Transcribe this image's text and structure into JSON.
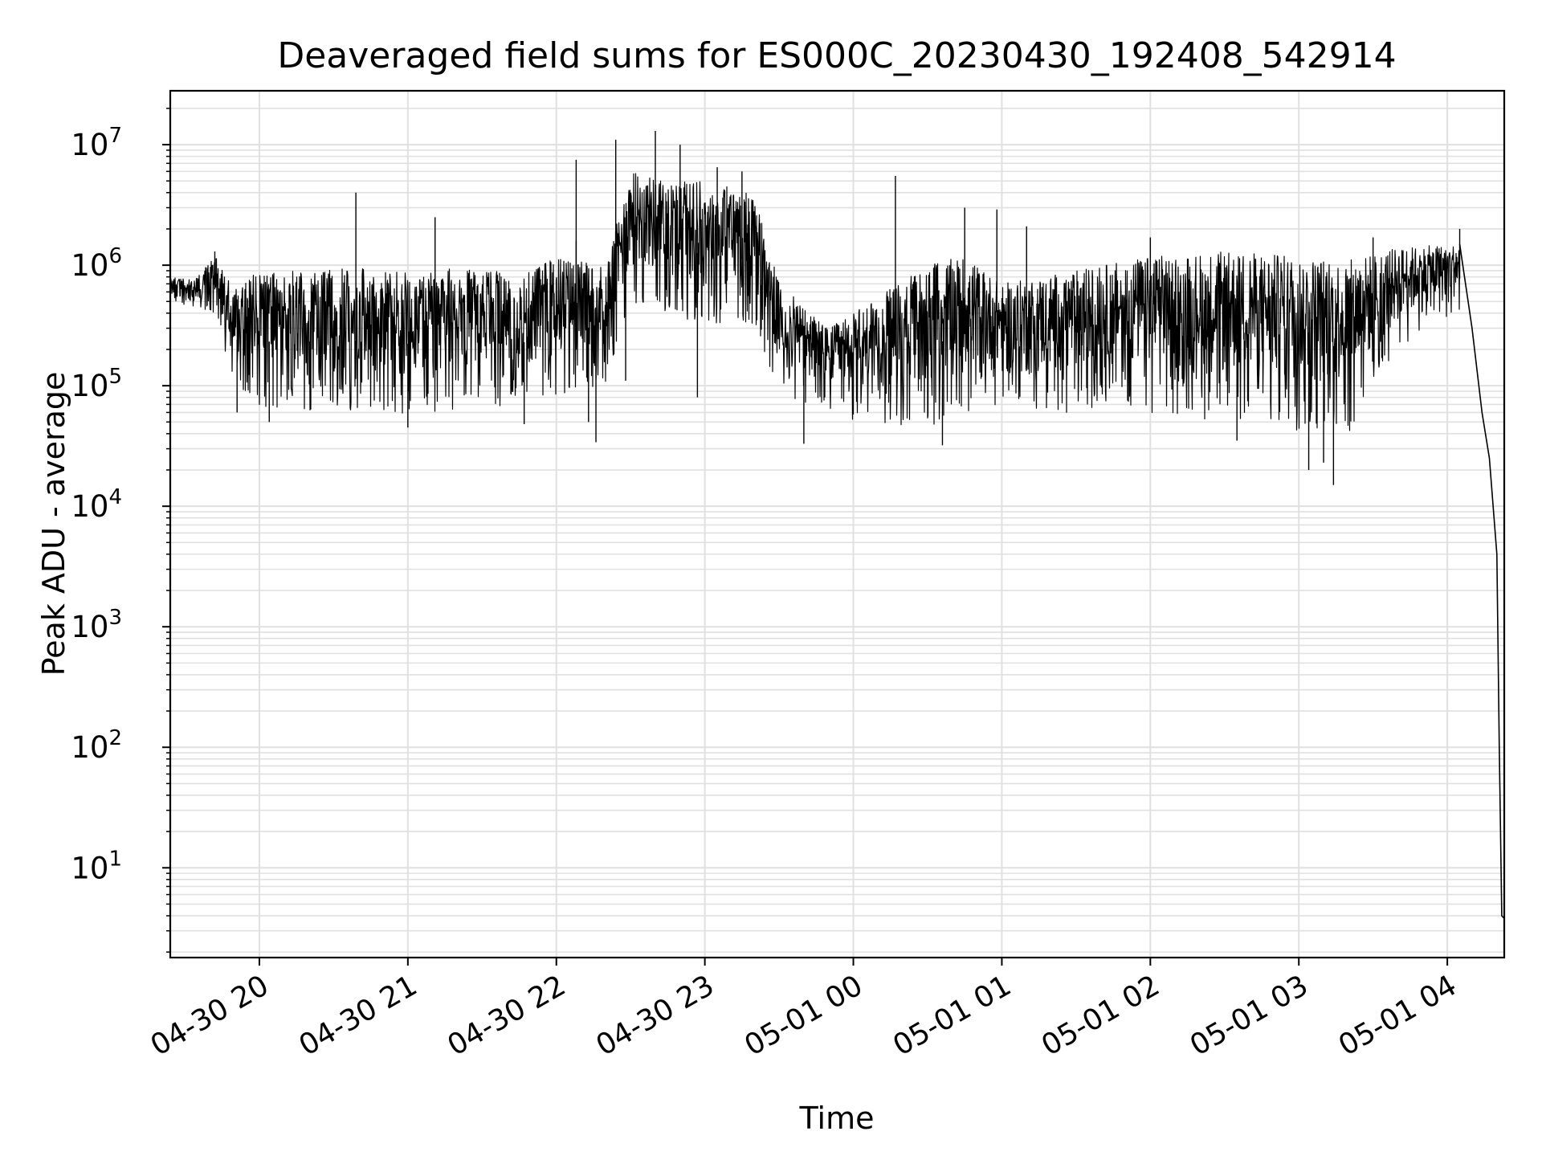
{
  "chart_data": {
    "type": "line",
    "title": "Deaveraged field sums for ES000C_20230430_192408_542914",
    "xlabel": "Time",
    "ylabel": "Peak ADU - average",
    "yscale": "log",
    "ylim": [
      1.8,
      28000000
    ],
    "xlim": [
      "2023-04-30 19:24",
      "2023-05-01 04:23"
    ],
    "x_ticks": [
      {
        "t": "2023-04-30 20:00",
        "label": "04-30 20"
      },
      {
        "t": "2023-04-30 21:00",
        "label": "04-30 21"
      },
      {
        "t": "2023-04-30 22:00",
        "label": "04-30 22"
      },
      {
        "t": "2023-04-30 23:00",
        "label": "04-30 23"
      },
      {
        "t": "2023-05-01 00:00",
        "label": "05-01 00"
      },
      {
        "t": "2023-05-01 01:00",
        "label": "05-01 01"
      },
      {
        "t": "2023-05-01 02:00",
        "label": "05-01 02"
      },
      {
        "t": "2023-05-01 03:00",
        "label": "05-01 03"
      },
      {
        "t": "2023-05-01 04:00",
        "label": "05-01 04"
      }
    ],
    "y_ticks": [
      {
        "value": 10,
        "base": "10",
        "exp": "1"
      },
      {
        "value": 100,
        "base": "10",
        "exp": "2"
      },
      {
        "value": 1000,
        "base": "10",
        "exp": "3"
      },
      {
        "value": 10000,
        "base": "10",
        "exp": "4"
      },
      {
        "value": 100000,
        "base": "10",
        "exp": "5"
      },
      {
        "value": 1000000,
        "base": "10",
        "exp": "6"
      },
      {
        "value": 10000000,
        "base": "10",
        "exp": "7"
      }
    ],
    "grid": true,
    "line_color": "#000000",
    "grid_color": "#e0e0e0",
    "series": [
      {
        "envelope": [
          {
            "t": "2023-04-30 19:24",
            "lo": 500000,
            "hi": 800000
          },
          {
            "t": "2023-04-30 19:34",
            "lo": 450000,
            "hi": 750000
          },
          {
            "t": "2023-04-30 19:42",
            "lo": 400000,
            "hi": 1300000
          },
          {
            "t": "2023-04-30 19:50",
            "lo": 90000,
            "hi": 650000
          },
          {
            "t": "2023-04-30 20:00",
            "lo": 60000,
            "hi": 900000
          },
          {
            "t": "2023-04-30 20:20",
            "lo": 60000,
            "hi": 900000
          },
          {
            "t": "2023-04-30 20:40",
            "lo": 60000,
            "hi": 950000
          },
          {
            "t": "2023-04-30 21:00",
            "lo": 55000,
            "hi": 900000
          },
          {
            "t": "2023-04-30 21:30",
            "lo": 70000,
            "hi": 1000000
          },
          {
            "t": "2023-04-30 21:45",
            "lo": 60000,
            "hi": 800000
          },
          {
            "t": "2023-04-30 22:00",
            "lo": 80000,
            "hi": 1200000
          },
          {
            "t": "2023-04-30 22:20",
            "lo": 90000,
            "hi": 1000000
          },
          {
            "t": "2023-04-30 22:30",
            "lo": 500000,
            "hi": 6000000
          },
          {
            "t": "2023-04-30 22:45",
            "lo": 400000,
            "hi": 5000000
          },
          {
            "t": "2023-04-30 23:00",
            "lo": 300000,
            "hi": 5000000
          },
          {
            "t": "2023-04-30 23:20",
            "lo": 300000,
            "hi": 4000000
          },
          {
            "t": "2023-04-30 23:30",
            "lo": 80000,
            "hi": 700000
          },
          {
            "t": "2023-04-30 23:50",
            "lo": 60000,
            "hi": 300000
          },
          {
            "t": "2023-05-01 00:00",
            "lo": 50000,
            "hi": 400000
          },
          {
            "t": "2023-05-01 00:30",
            "lo": 45000,
            "hi": 1000000
          },
          {
            "t": "2023-05-01 00:45",
            "lo": 60000,
            "hi": 1200000
          },
          {
            "t": "2023-05-01 01:00",
            "lo": 60000,
            "hi": 700000
          },
          {
            "t": "2023-05-01 02:00",
            "lo": 60000,
            "hi": 1200000
          },
          {
            "t": "2023-05-01 02:30",
            "lo": 50000,
            "hi": 1300000
          },
          {
            "t": "2023-05-01 03:00",
            "lo": 40000,
            "hi": 1200000
          },
          {
            "t": "2023-05-01 03:20",
            "lo": 40000,
            "hi": 1100000
          },
          {
            "t": "2023-05-01 03:40",
            "lo": 200000,
            "hi": 1400000
          },
          {
            "t": "2023-05-01 04:05",
            "lo": 400000,
            "hi": 1500000
          }
        ],
        "spikes": [
          {
            "t": "2023-04-30 19:42",
            "value": 1300000
          },
          {
            "t": "2023-04-30 19:51",
            "value": 60000
          },
          {
            "t": "2023-04-30 20:04",
            "value": 50000
          },
          {
            "t": "2023-04-30 20:39",
            "value": 4000000
          },
          {
            "t": "2023-04-30 21:11",
            "value": 2500000
          },
          {
            "t": "2023-04-30 21:00",
            "value": 45000
          },
          {
            "t": "2023-04-30 21:47",
            "value": 48000
          },
          {
            "t": "2023-04-30 22:08",
            "value": 1000000
          },
          {
            "t": "2023-04-30 22:13",
            "value": 50000
          },
          {
            "t": "2023-04-30 22:08",
            "value": 1600000
          },
          {
            "t": "2023-04-30 22:08",
            "value": 7500000
          },
          {
            "t": "2023-04-30 22:16",
            "value": 34000
          },
          {
            "t": "2023-04-30 22:24",
            "value": 11000000
          },
          {
            "t": "2023-04-30 22:28",
            "value": 110000
          },
          {
            "t": "2023-04-30 22:40",
            "value": 13000000
          },
          {
            "t": "2023-04-30 22:50",
            "value": 10000000
          },
          {
            "t": "2023-04-30 22:53",
            "value": 3000000
          },
          {
            "t": "2023-04-30 22:57",
            "value": 80000
          },
          {
            "t": "2023-04-30 23:05",
            "value": 6500000
          },
          {
            "t": "2023-04-30 23:15",
            "value": 6000000
          },
          {
            "t": "2023-04-30 23:40",
            "value": 33000
          },
          {
            "t": "2023-05-01 00:17",
            "value": 5500000
          },
          {
            "t": "2023-05-01 00:36",
            "value": 32000
          },
          {
            "t": "2023-05-01 00:45",
            "value": 3000000
          },
          {
            "t": "2023-05-01 00:58",
            "value": 2900000
          },
          {
            "t": "2023-05-01 01:10",
            "value": 2100000
          },
          {
            "t": "2023-05-01 02:00",
            "value": 1700000
          },
          {
            "t": "2023-05-01 02:35",
            "value": 35000
          },
          {
            "t": "2023-05-01 03:04",
            "value": 20000
          },
          {
            "t": "2023-05-01 03:10",
            "value": 23000
          },
          {
            "t": "2023-05-01 03:14",
            "value": 15000
          },
          {
            "t": "2023-05-01 03:30",
            "value": 1700000
          },
          {
            "t": "2023-05-01 04:05",
            "value": 2000000
          }
        ],
        "tail": [
          {
            "t": "2023-05-01 04:05",
            "value": 1500000
          },
          {
            "t": "2023-05-01 04:10",
            "value": 300000
          },
          {
            "t": "2023-05-01 04:14",
            "value": 60000
          },
          {
            "t": "2023-05-01 04:17",
            "value": 25000
          },
          {
            "t": "2023-05-01 04:20",
            "value": 4000
          },
          {
            "t": "2023-05-01 04:21",
            "value": 100
          },
          {
            "t": "2023-05-01 04:22",
            "value": 4
          },
          {
            "t": "2023-05-01 04:23",
            "value": 3.8
          }
        ]
      }
    ]
  }
}
